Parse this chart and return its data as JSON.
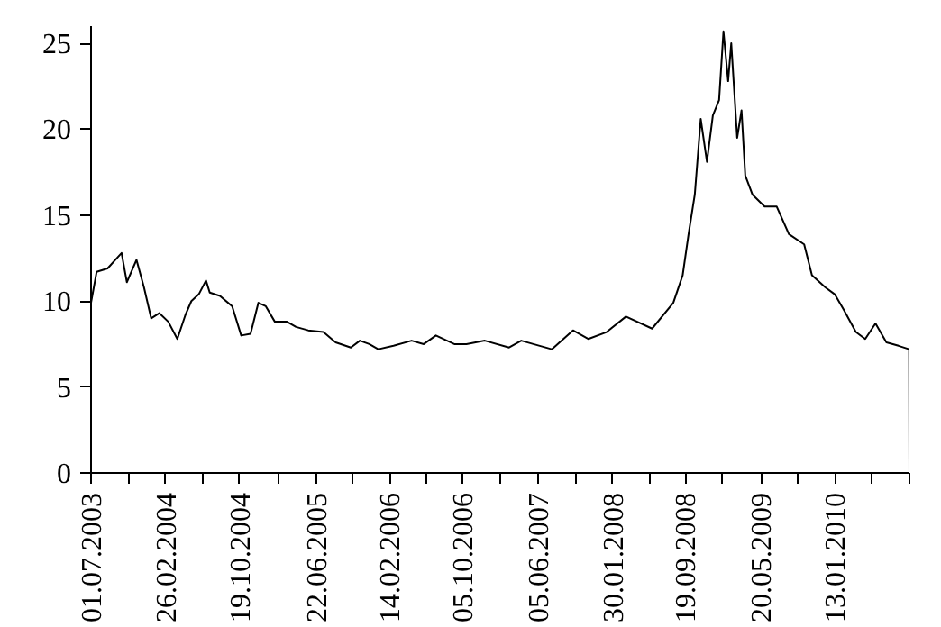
{
  "chart_data": {
    "type": "line",
    "grid": false,
    "marker": "none",
    "line_style": "solid",
    "xlim": [
      "2003-07-01",
      "2010-09-09"
    ],
    "ylim": [
      0,
      26
    ],
    "yticks": [
      0,
      5,
      10,
      15,
      20,
      25
    ],
    "xticks": [
      {
        "value": "2003-07-01",
        "label": "01.07.2003"
      },
      {
        "value": "2003-10-29",
        "label": null
      },
      {
        "value": "2004-02-26",
        "label": "26.02.2004"
      },
      {
        "value": "2004-06-23",
        "label": null
      },
      {
        "value": "2004-10-19",
        "label": "19.10.2004"
      },
      {
        "value": "2005-02-19",
        "label": null
      },
      {
        "value": "2005-06-22",
        "label": "22.06.2005"
      },
      {
        "value": "2005-10-19",
        "label": null
      },
      {
        "value": "2006-02-14",
        "label": "14.02.2006"
      },
      {
        "value": "2006-06-11",
        "label": null
      },
      {
        "value": "2006-10-05",
        "label": "05.10.2006"
      },
      {
        "value": "2007-02-03",
        "label": null
      },
      {
        "value": "2007-06-05",
        "label": "05.06.2007"
      },
      {
        "value": "2007-10-02",
        "label": null
      },
      {
        "value": "2008-01-30",
        "label": "30.01.2008"
      },
      {
        "value": "2008-05-26",
        "label": null
      },
      {
        "value": "2008-09-19",
        "label": "19.09.2008"
      },
      {
        "value": "2009-01-18",
        "label": null
      },
      {
        "value": "2009-05-20",
        "label": "20.05.2009"
      },
      {
        "value": "2009-09-16",
        "label": null
      },
      {
        "value": "2010-01-13",
        "label": "13.01.2010"
      },
      {
        "value": "2010-05-12",
        "label": null
      },
      {
        "value": "2010-09-09",
        "label": null
      }
    ],
    "x": [
      "2003-07-01",
      "2003-07-19",
      "2003-08-23",
      "2003-09-27",
      "2003-10-07",
      "2003-10-24",
      "2003-11-24",
      "2003-12-18",
      "2004-01-10",
      "2004-02-05",
      "2004-03-05",
      "2004-04-03",
      "2004-04-29",
      "2004-05-18",
      "2004-06-11",
      "2004-07-04",
      "2004-07-16",
      "2004-08-18",
      "2004-09-26",
      "2004-10-25",
      "2004-11-24",
      "2004-12-19",
      "2005-01-12",
      "2005-02-10",
      "2005-03-21",
      "2005-04-19",
      "2005-05-28",
      "2005-07-16",
      "2005-08-24",
      "2005-10-12",
      "2005-11-10",
      "2005-12-10",
      "2006-01-08",
      "2006-02-26",
      "2006-04-25",
      "2006-06-03",
      "2006-07-12",
      "2006-09-09",
      "2006-10-18",
      "2006-12-16",
      "2007-03-04",
      "2007-04-12",
      "2007-07-19",
      "2007-09-25",
      "2007-11-13",
      "2008-01-11",
      "2008-03-13",
      "2008-06-05",
      "2008-08-12",
      "2008-09-11",
      "2008-09-30",
      "2008-10-20",
      "2008-11-08",
      "2008-11-28",
      "2008-12-17",
      "2009-01-06",
      "2009-01-20",
      "2009-02-04",
      "2009-02-14",
      "2009-03-05",
      "2009-03-19",
      "2009-03-31",
      "2009-04-23",
      "2009-06-01",
      "2009-07-10",
      "2009-08-18",
      "2009-10-06",
      "2009-10-31",
      "2009-12-13",
      "2010-01-12",
      "2010-02-10",
      "2010-03-21",
      "2010-04-20",
      "2010-05-23",
      "2010-06-27",
      "2010-08-05",
      "2010-09-08",
      "2010-09-09"
    ],
    "series": [
      {
        "color": "#000000",
        "values": [
          9.9,
          11.7,
          11.9,
          12.6,
          12.8,
          11.1,
          12.4,
          10.8,
          9.0,
          9.3,
          8.8,
          7.8,
          9.2,
          10.0,
          10.4,
          11.2,
          10.5,
          10.3,
          9.7,
          8.0,
          8.1,
          9.9,
          9.7,
          8.8,
          8.8,
          8.5,
          8.3,
          8.2,
          7.6,
          7.3,
          7.7,
          7.5,
          7.2,
          7.4,
          7.7,
          7.5,
          8.0,
          7.5,
          7.5,
          7.7,
          7.3,
          7.7,
          7.2,
          8.3,
          7.8,
          8.2,
          9.1,
          8.4,
          9.9,
          11.5,
          13.9,
          16.2,
          20.6,
          18.1,
          20.8,
          21.7,
          25.7,
          22.8,
          25.0,
          19.5,
          21.1,
          17.3,
          16.2,
          15.5,
          15.5,
          13.9,
          13.3,
          11.5,
          10.8,
          10.4,
          9.5,
          8.2,
          7.8,
          8.7,
          7.6,
          7.4,
          7.2,
          0
        ]
      }
    ]
  }
}
